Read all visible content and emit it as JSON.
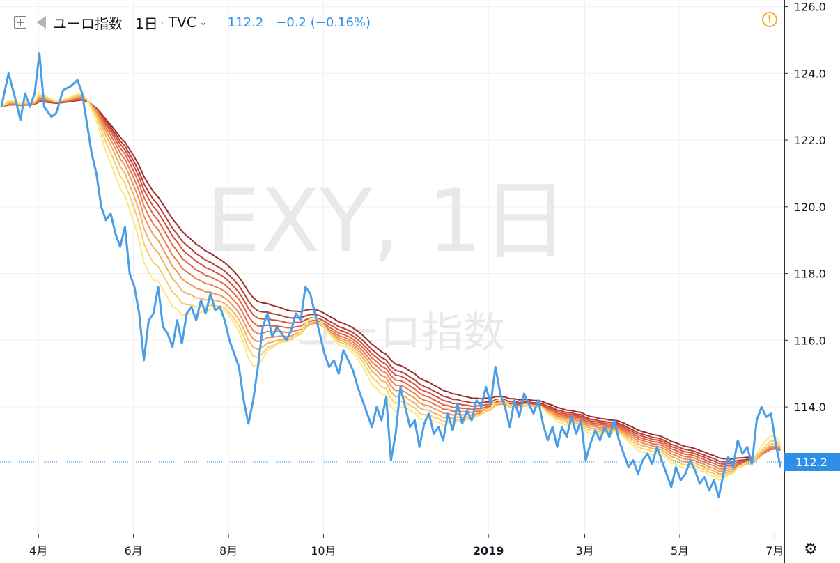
{
  "header": {
    "symbol": "ユーロ指数",
    "interval": "1日",
    "exchange": "TVC",
    "last_value": "112.2",
    "change": "−0.2 (−0.16%)"
  },
  "watermark": {
    "line1": "EXY, 1日",
    "line2": "ユーロ指数"
  },
  "price_label": "112.2",
  "icons": {
    "warn": "warning-icon",
    "settings": "settings-icon"
  },
  "colors": {
    "price_line": "#4a9ee8",
    "ribbon": [
      "#f8e97a",
      "#f6cf6c",
      "#f3b25f",
      "#f09555",
      "#eb7a4e",
      "#e16447",
      "#cf5040",
      "#b73e37",
      "#9a2e2b"
    ]
  },
  "chart_data": {
    "type": "line",
    "title": "",
    "xlabel": "",
    "ylabel": "",
    "ylim": [
      110.2,
      126.2
    ],
    "yticks": [
      "126.0",
      "124.0",
      "122.0",
      "120.0",
      "118.0",
      "116.0",
      "114.0"
    ],
    "xticks": [
      {
        "label": "4月",
        "x": 0.18
      },
      {
        "label": "6月",
        "x": 2.18
      },
      {
        "label": "8月",
        "x": 4.18
      },
      {
        "label": "10月",
        "x": 6.18
      },
      {
        "label": "2019",
        "x": 9.65
      },
      {
        "label": "3月",
        "x": 11.68
      },
      {
        "label": "5月",
        "x": 13.68
      },
      {
        "label": "7月",
        "x": 15.68
      }
    ],
    "xlim": [
      -0.63,
      15.88
    ],
    "grid": true,
    "last_value": 112.2,
    "series": [
      {
        "values": [
          [
            -0.6,
            123.0
          ],
          [
            -0.45,
            124.0
          ],
          [
            -0.3,
            123.2
          ],
          [
            -0.2,
            122.6
          ],
          [
            -0.1,
            123.4
          ],
          [
            0.0,
            123.0
          ],
          [
            0.1,
            123.4
          ],
          [
            0.2,
            124.6
          ],
          [
            0.3,
            123.0
          ],
          [
            0.45,
            122.7
          ],
          [
            0.55,
            122.8
          ],
          [
            0.7,
            123.5
          ],
          [
            0.85,
            123.6
          ],
          [
            1.0,
            123.8
          ],
          [
            1.1,
            123.4
          ],
          [
            1.2,
            122.5
          ],
          [
            1.3,
            121.6
          ],
          [
            1.4,
            121.0
          ],
          [
            1.5,
            120.0
          ],
          [
            1.6,
            119.6
          ],
          [
            1.7,
            119.8
          ],
          [
            1.8,
            119.2
          ],
          [
            1.9,
            118.8
          ],
          [
            2.0,
            119.4
          ],
          [
            2.1,
            118.0
          ],
          [
            2.2,
            117.6
          ],
          [
            2.3,
            116.8
          ],
          [
            2.4,
            115.4
          ],
          [
            2.5,
            116.6
          ],
          [
            2.6,
            116.8
          ],
          [
            2.7,
            117.6
          ],
          [
            2.8,
            116.4
          ],
          [
            2.9,
            116.2
          ],
          [
            3.0,
            115.8
          ],
          [
            3.1,
            116.6
          ],
          [
            3.2,
            115.9
          ],
          [
            3.3,
            116.8
          ],
          [
            3.4,
            117.0
          ],
          [
            3.5,
            116.6
          ],
          [
            3.6,
            117.2
          ],
          [
            3.7,
            116.8
          ],
          [
            3.8,
            117.4
          ],
          [
            3.9,
            116.9
          ],
          [
            4.0,
            117.0
          ],
          [
            4.1,
            116.6
          ],
          [
            4.2,
            116.0
          ],
          [
            4.3,
            115.6
          ],
          [
            4.4,
            115.2
          ],
          [
            4.5,
            114.2
          ],
          [
            4.6,
            113.5
          ],
          [
            4.7,
            114.2
          ],
          [
            4.8,
            115.2
          ],
          [
            4.9,
            116.4
          ],
          [
            5.0,
            116.8
          ],
          [
            5.1,
            116.1
          ],
          [
            5.2,
            116.4
          ],
          [
            5.3,
            116.2
          ],
          [
            5.4,
            116.0
          ],
          [
            5.5,
            116.3
          ],
          [
            5.6,
            116.8
          ],
          [
            5.7,
            116.6
          ],
          [
            5.8,
            117.6
          ],
          [
            5.9,
            117.4
          ],
          [
            6.0,
            116.8
          ],
          [
            6.1,
            116.2
          ],
          [
            6.2,
            115.6
          ],
          [
            6.3,
            115.2
          ],
          [
            6.4,
            115.4
          ],
          [
            6.5,
            115.0
          ],
          [
            6.6,
            115.7
          ],
          [
            6.7,
            115.4
          ],
          [
            6.8,
            115.1
          ],
          [
            6.9,
            114.6
          ],
          [
            7.0,
            114.2
          ],
          [
            7.1,
            113.8
          ],
          [
            7.2,
            113.4
          ],
          [
            7.3,
            114.0
          ],
          [
            7.4,
            113.6
          ],
          [
            7.5,
            114.3
          ],
          [
            7.6,
            112.4
          ],
          [
            7.7,
            113.2
          ],
          [
            7.8,
            114.6
          ],
          [
            7.9,
            114.0
          ],
          [
            8.0,
            113.4
          ],
          [
            8.1,
            113.6
          ],
          [
            8.2,
            112.8
          ],
          [
            8.3,
            113.5
          ],
          [
            8.4,
            113.8
          ],
          [
            8.5,
            113.2
          ],
          [
            8.6,
            113.4
          ],
          [
            8.7,
            113.0
          ],
          [
            8.8,
            113.8
          ],
          [
            8.9,
            113.3
          ],
          [
            9.0,
            114.1
          ],
          [
            9.1,
            113.5
          ],
          [
            9.2,
            113.9
          ],
          [
            9.3,
            113.6
          ],
          [
            9.4,
            114.2
          ],
          [
            9.5,
            114.0
          ],
          [
            9.6,
            114.6
          ],
          [
            9.7,
            114.1
          ],
          [
            9.8,
            115.2
          ],
          [
            9.9,
            114.4
          ],
          [
            10.0,
            114.0
          ],
          [
            10.1,
            113.4
          ],
          [
            10.2,
            114.2
          ],
          [
            10.3,
            113.7
          ],
          [
            10.4,
            114.4
          ],
          [
            10.5,
            114.1
          ],
          [
            10.6,
            113.8
          ],
          [
            10.7,
            114.2
          ],
          [
            10.8,
            113.5
          ],
          [
            10.9,
            113.0
          ],
          [
            11.0,
            113.4
          ],
          [
            11.1,
            112.8
          ],
          [
            11.2,
            113.4
          ],
          [
            11.3,
            113.1
          ],
          [
            11.4,
            113.7
          ],
          [
            11.5,
            113.2
          ],
          [
            11.6,
            113.6
          ],
          [
            11.7,
            112.4
          ],
          [
            11.8,
            112.9
          ],
          [
            11.9,
            113.3
          ],
          [
            12.0,
            113.0
          ],
          [
            12.1,
            113.4
          ],
          [
            12.2,
            113.1
          ],
          [
            12.3,
            113.6
          ],
          [
            12.4,
            113.0
          ],
          [
            12.5,
            112.6
          ],
          [
            12.6,
            112.2
          ],
          [
            12.7,
            112.4
          ],
          [
            12.8,
            112.0
          ],
          [
            12.9,
            112.4
          ],
          [
            13.0,
            112.6
          ],
          [
            13.1,
            112.3
          ],
          [
            13.2,
            112.8
          ],
          [
            13.3,
            112.4
          ],
          [
            13.4,
            112.0
          ],
          [
            13.5,
            111.6
          ],
          [
            13.6,
            112.2
          ],
          [
            13.7,
            111.8
          ],
          [
            13.8,
            112.0
          ],
          [
            13.9,
            112.4
          ],
          [
            14.0,
            112.1
          ],
          [
            14.1,
            111.7
          ],
          [
            14.2,
            111.9
          ],
          [
            14.3,
            111.5
          ],
          [
            14.4,
            111.8
          ],
          [
            14.5,
            111.3
          ],
          [
            14.6,
            112.0
          ],
          [
            14.7,
            112.5
          ],
          [
            14.8,
            112.2
          ],
          [
            14.9,
            113.0
          ],
          [
            15.0,
            112.6
          ],
          [
            15.1,
            112.8
          ],
          [
            15.2,
            112.3
          ],
          [
            15.3,
            113.6
          ],
          [
            15.4,
            114.0
          ],
          [
            15.5,
            113.7
          ],
          [
            15.6,
            113.8
          ],
          [
            15.7,
            112.9
          ],
          [
            15.8,
            112.2
          ]
        ]
      }
    ]
  }
}
